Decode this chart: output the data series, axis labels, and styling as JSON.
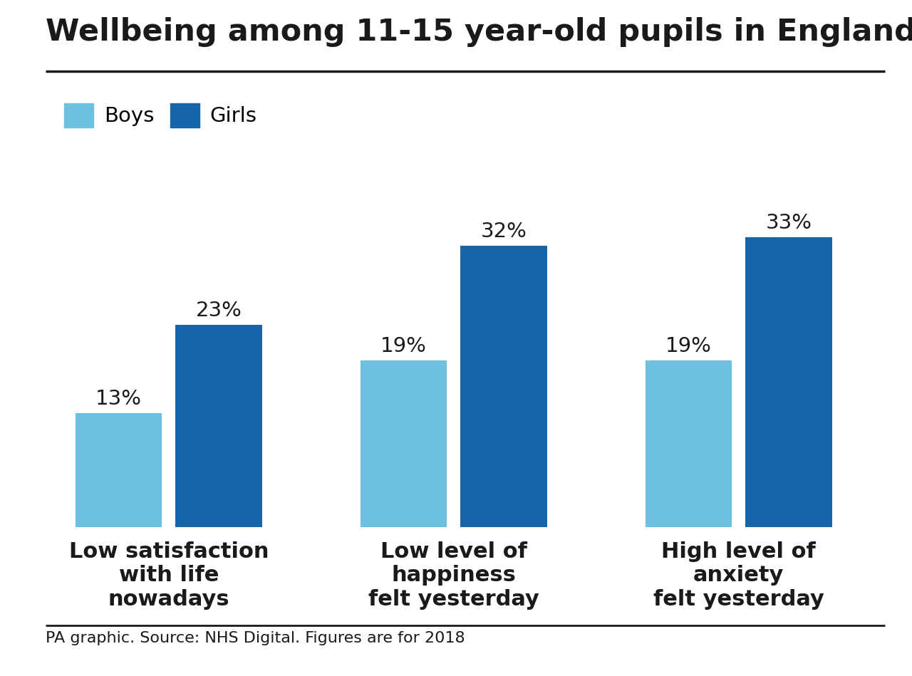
{
  "title": "Wellbeing among 11-15 year-old pupils in England",
  "categories": [
    "Low satisfaction\nwith life\nnowadays",
    "Low level of\nhappiness\nfelt yesterday",
    "High level of\nanxiety\nfelt yesterday"
  ],
  "boys_values": [
    13,
    19,
    19
  ],
  "girls_values": [
    23,
    32,
    33
  ],
  "boys_color": "#6DC0E0",
  "girls_color": "#1565A8",
  "bar_width": 0.38,
  "source": "PA graphic. Source: NHS Digital. Figures are for 2018",
  "background_color": "#FFFFFF",
  "title_fontsize": 31,
  "annotation_fontsize": 21,
  "legend_fontsize": 21,
  "source_fontsize": 16,
  "category_fontsize": 22,
  "ylim": [
    0,
    40
  ]
}
